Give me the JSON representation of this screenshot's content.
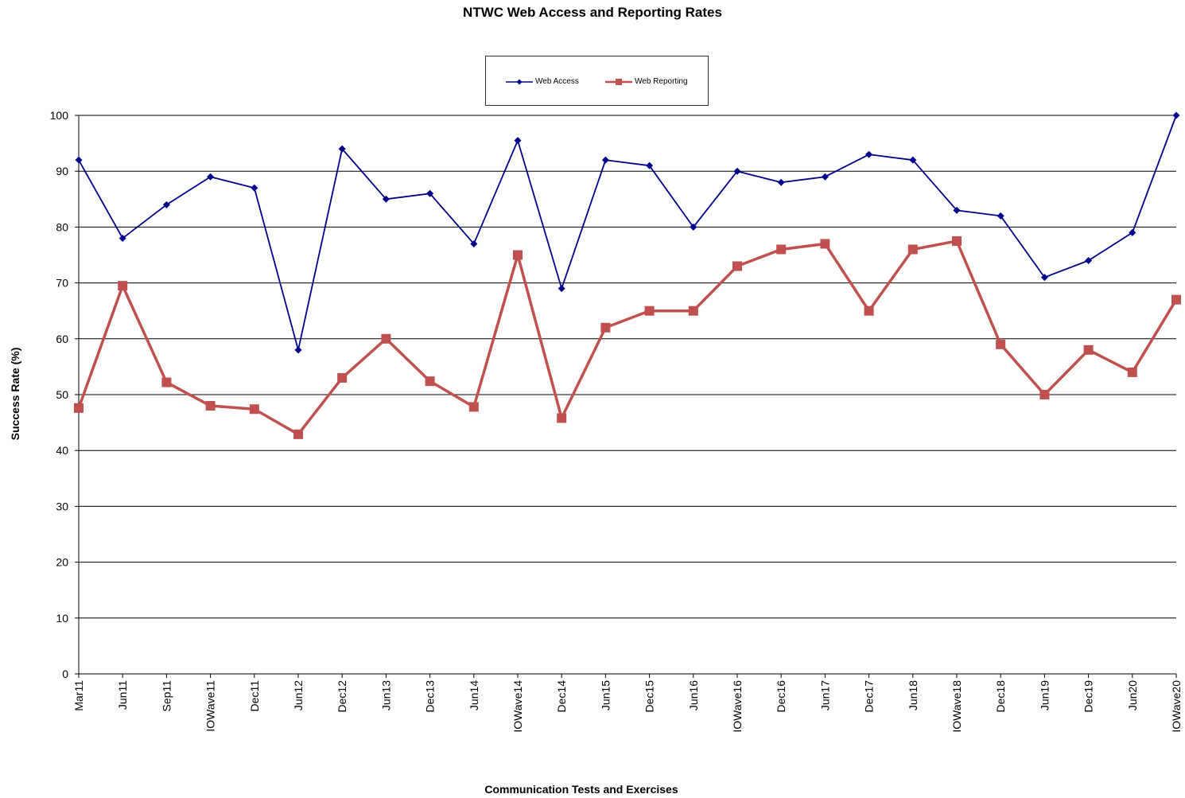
{
  "chart_data": {
    "type": "line",
    "title": "NTWC Web Access and Reporting Rates",
    "xlabel": "Communication Tests and Exercises",
    "ylabel": "Success Rate (%)",
    "ylim": [
      0,
      100
    ],
    "yticks": [
      0,
      10,
      20,
      30,
      40,
      50,
      60,
      70,
      80,
      90,
      100
    ],
    "grid": true,
    "legend_position": "top-center",
    "categories": [
      "Mar11",
      "Jun11",
      "Sep11",
      "IOWave11",
      "Dec11",
      "Jun12",
      "Dec12",
      "Jun13",
      "Dec13",
      "Jun14",
      "IOWave14",
      "Dec14",
      "Jun15",
      "Dec15",
      "Jun16",
      "IOWave16",
      "Dec16",
      "Jun17",
      "Dec17",
      "Jun18",
      "IOWave18",
      "Dec18",
      "Jun19",
      "Dec19",
      "Jun20",
      "IOWave20"
    ],
    "series": [
      {
        "name": "Web Access",
        "color": "#00008B",
        "marker": "diamond",
        "values": [
          92,
          78,
          84,
          89,
          87,
          58,
          94,
          85,
          86,
          77,
          95.5,
          69,
          92,
          91,
          80,
          90,
          88,
          89,
          93,
          92,
          83,
          82,
          71,
          74,
          79,
          100
        ]
      },
      {
        "name": "Web Reporting",
        "color": "#C0504D",
        "marker": "square",
        "values": [
          47.6,
          69.5,
          52.2,
          48,
          47.4,
          42.9,
          53,
          60,
          52.4,
          47.8,
          75,
          45.8,
          62,
          65,
          65,
          73,
          76,
          77,
          65,
          76,
          77.5,
          59,
          50,
          58,
          54,
          67
        ]
      }
    ]
  }
}
